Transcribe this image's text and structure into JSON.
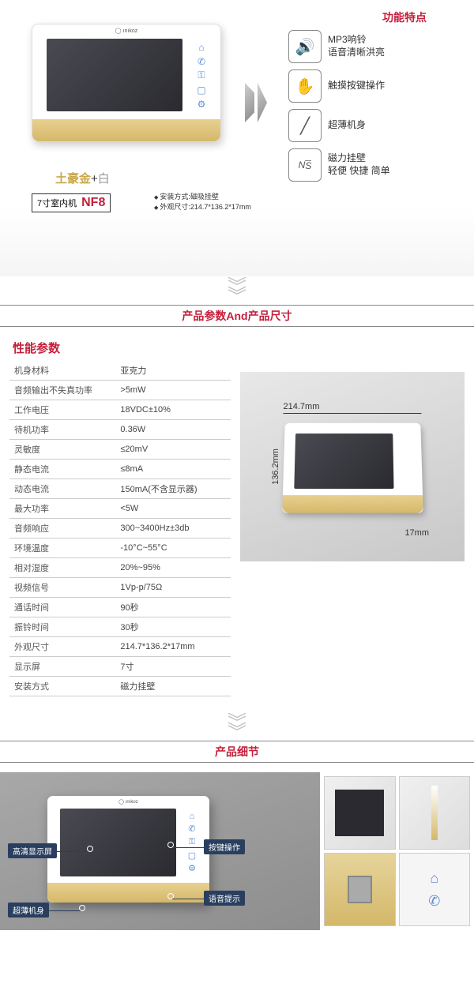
{
  "features_title": "功能特点",
  "color_label": {
    "gold": "土豪金",
    "plus": "+",
    "white": "白"
  },
  "model": {
    "prefix": "7寸室内机",
    "code": "NF8"
  },
  "small_specs": [
    "安装方式:磁吸挂壁",
    "外观尺寸:214.7*136.2*17mm"
  ],
  "features": [
    {
      "icon": "🔊",
      "line1": "MP3响铃",
      "line2": "语音清晰洪亮"
    },
    {
      "icon": "✋",
      "line1": "触摸按键操作",
      "line2": ""
    },
    {
      "icon": "╱",
      "line1": "超薄机身",
      "line2": ""
    },
    {
      "icon": "N/S",
      "line1": "磁力挂壁",
      "line2": "轻便 快捷 简单"
    }
  ],
  "sec2_title": "产品参数And产品尺寸",
  "spec_head": "性能参数",
  "specs": [
    [
      "机身材料",
      "亚克力"
    ],
    [
      "音频输出不失真功率",
      ">5mW"
    ],
    [
      "工作电压",
      "18VDC±10%"
    ],
    [
      "待机功率",
      "0.36W"
    ],
    [
      "灵敏度",
      "≤20mV"
    ],
    [
      "静态电流",
      "≤8mA"
    ],
    [
      "动态电流",
      "150mA(不含显示器)"
    ],
    [
      "最大功率",
      "<5W"
    ],
    [
      "音频响应",
      "300~3400Hz±3db"
    ],
    [
      "环境温度",
      "-10°C~55°C"
    ],
    [
      "相对湿度",
      "20%~95%"
    ],
    [
      "视频信号",
      "1Vp-p/75Ω"
    ],
    [
      "通话时间",
      "90秒"
    ],
    [
      "振铃时间",
      "30秒"
    ],
    [
      "外观尺寸",
      "214.7*136.2*17mm"
    ],
    [
      "显示屏",
      "7寸"
    ],
    [
      "安装方式",
      "磁力挂壁"
    ]
  ],
  "dims": {
    "w": "214.7mm",
    "h": "136.2mm",
    "d": "17mm"
  },
  "sec3_title": "产品细节",
  "callouts": [
    "高清显示屏",
    "超薄机身",
    "按键操作",
    "语音提示"
  ],
  "colors": {
    "accent": "#c41e3a",
    "gold": "#d4b86a",
    "icon_blue": "#5a8fd4",
    "callout_bg": "#2a3f5f"
  }
}
